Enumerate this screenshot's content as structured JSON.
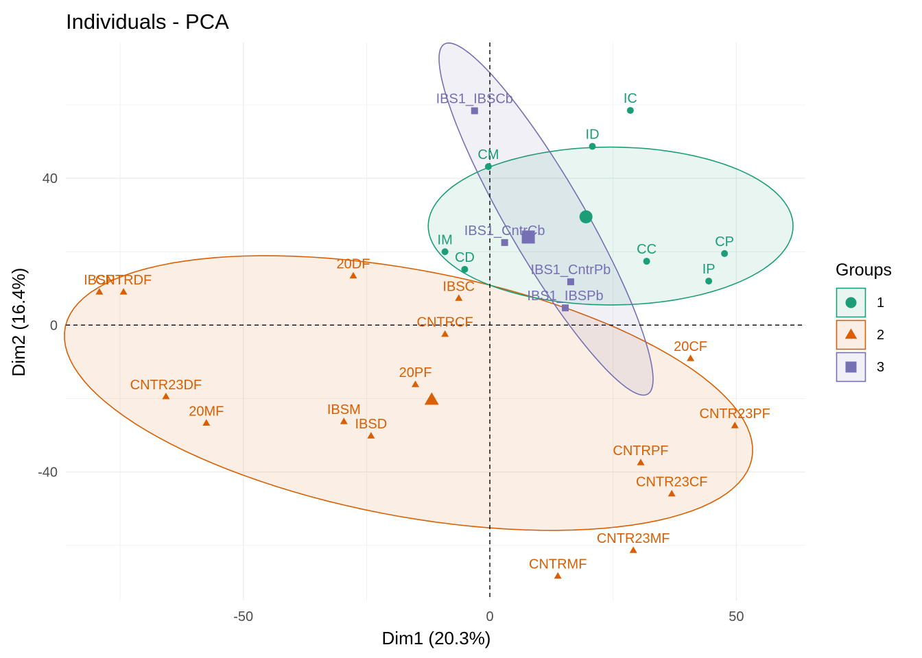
{
  "chart_data": {
    "type": "scatter",
    "title": "Individuals - PCA",
    "xlabel": "Dim1 (20.3%)",
    "ylabel": "Dim2 (16.4%)",
    "xlim": [
      -86,
      64
    ],
    "ylim": [
      -75,
      77
    ],
    "x_ticks": [
      -50,
      0,
      50
    ],
    "y_ticks": [
      -40,
      0,
      40
    ],
    "x_tick_labels": [
      "-50",
      "0",
      "50"
    ],
    "y_tick_labels": [
      "-40",
      "0",
      "40"
    ],
    "grid": true,
    "reference_lines": [
      {
        "axis": "x",
        "value": 0,
        "style": "dashed"
      },
      {
        "axis": "y",
        "value": 0,
        "style": "dashed"
      }
    ],
    "legend": {
      "title": "Groups",
      "position": "right",
      "entries": [
        "1",
        "2",
        "3"
      ]
    },
    "series": [
      {
        "name": "1",
        "color": "#1b9e77",
        "shape": "circle",
        "centroid": [
          19.5,
          29.5
        ],
        "ellipse": {
          "center": [
            24.5,
            27
          ],
          "rx": 37,
          "ry": 21.5,
          "angle": 0
        },
        "points": [
          {
            "label": "IC",
            "x": 28.5,
            "y": 58.5
          },
          {
            "label": "ID",
            "x": 20.8,
            "y": 48.7
          },
          {
            "label": "CM",
            "x": -0.3,
            "y": 43.2
          },
          {
            "label": "IM",
            "x": -9.1,
            "y": 20.0
          },
          {
            "label": "CD",
            "x": -5.1,
            "y": 15.2
          },
          {
            "label": "CC",
            "x": 31.8,
            "y": 17.4
          },
          {
            "label": "CP",
            "x": 47.6,
            "y": 19.5
          },
          {
            "label": "IP",
            "x": 44.4,
            "y": 12.0
          }
        ]
      },
      {
        "name": "2",
        "color": "#d95f02",
        "shape": "triangle",
        "centroid": [
          -11.8,
          -20.4
        ],
        "ellipse": {
          "center": [
            -16.5,
            -18.5
          ],
          "rx": 72,
          "ry": 33,
          "angle": -16
        },
        "points": [
          {
            "label": "IBSP",
            "x": -79.2,
            "y": 9.0
          },
          {
            "label": "CNTRDF",
            "x": -74.3,
            "y": 9.0
          },
          {
            "label": "20DF",
            "x": -27.7,
            "y": 13.4
          },
          {
            "label": "IBSC",
            "x": -6.3,
            "y": 7.3
          },
          {
            "label": "CNTRCF",
            "x": -9.1,
            "y": -2.5
          },
          {
            "label": "20CF",
            "x": 40.7,
            "y": -9.1
          },
          {
            "label": "20PF",
            "x": -15.1,
            "y": -16.2
          },
          {
            "label": "CNTR23DF",
            "x": -65.7,
            "y": -19.5
          },
          {
            "label": "20MF",
            "x": -57.5,
            "y": -26.7
          },
          {
            "label": "IBSM",
            "x": -29.6,
            "y": -26.3
          },
          {
            "label": "IBSD",
            "x": -24.1,
            "y": -30.2
          },
          {
            "label": "CNTR23PF",
            "x": 49.7,
            "y": -27.4
          },
          {
            "label": "CNTRPF",
            "x": 30.6,
            "y": -37.5
          },
          {
            "label": "CNTR23CF",
            "x": 36.9,
            "y": -46.0
          },
          {
            "label": "CNTR23MF",
            "x": 29.1,
            "y": -61.4
          },
          {
            "label": "CNTRMF",
            "x": 13.8,
            "y": -68.4
          }
        ]
      },
      {
        "name": "3",
        "color": "#7570b3",
        "shape": "square",
        "centroid": [
          7.8,
          24.0
        ],
        "ellipse": {
          "center": [
            11.4,
            28.9
          ],
          "rx": 52,
          "ry": 8.3,
          "angle": -67
        },
        "points": [
          {
            "label": "IBS1_IBSCb",
            "x": -3.1,
            "y": 58.4
          },
          {
            "label": "IBS1_CntrCb",
            "x": 3.0,
            "y": 22.5
          },
          {
            "label": "IBS1_CntrPb",
            "x": 16.4,
            "y": 11.8
          },
          {
            "label": "IBS1_IBSPb",
            "x": 15.3,
            "y": 4.7
          }
        ]
      }
    ]
  }
}
